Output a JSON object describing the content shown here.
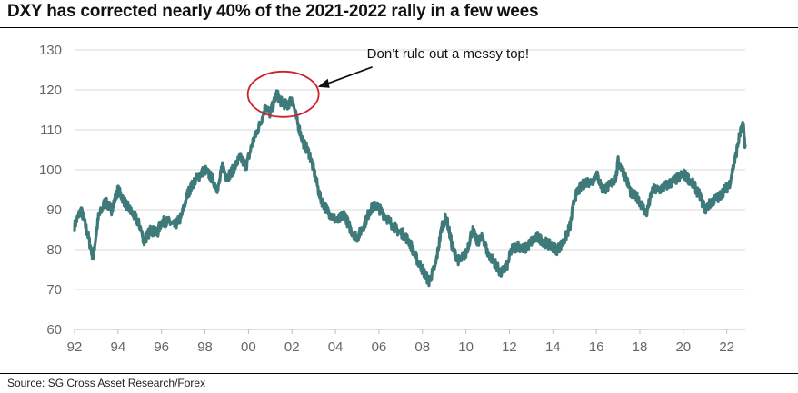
{
  "title": "DXY has corrected nearly 40% of the 2021-2022 rally in a few wees",
  "source": "Source: SG Cross Asset Research/Forex",
  "colors": {
    "line": "#3f7a7a",
    "circle": "#d0202a",
    "grid": "#d9d9d9",
    "axis": "#bfbfbf"
  },
  "chart_data": {
    "type": "line",
    "title": "DXY has corrected nearly 40% of the 2021-2022 rally in a few wees",
    "xlabel": "",
    "ylabel": "",
    "xlim": [
      1992,
      2022.85
    ],
    "ylim": [
      60,
      130
    ],
    "grid": "horizontal",
    "legend": "none",
    "x_tick_values": [
      1992,
      1994,
      1996,
      1998,
      2000,
      2002,
      2004,
      2006,
      2008,
      2010,
      2012,
      2014,
      2016,
      2018,
      2020,
      2022
    ],
    "x_tick_labels": [
      "92",
      "94",
      "96",
      "98",
      "00",
      "02",
      "04",
      "06",
      "08",
      "10",
      "12",
      "14",
      "16",
      "18",
      "20",
      "22"
    ],
    "y_tick_values": [
      60,
      70,
      80,
      90,
      100,
      110,
      120,
      130
    ],
    "y_tick_labels": [
      "60",
      "70",
      "80",
      "90",
      "100",
      "110",
      "120",
      "130"
    ],
    "series": [
      {
        "name": "DXY",
        "x": [
          1992.0,
          1992.3,
          1992.6,
          1992.85,
          1993.1,
          1993.4,
          1993.7,
          1994.0,
          1994.4,
          1994.8,
          1995.0,
          1995.2,
          1995.5,
          1995.8,
          1996.0,
          1996.3,
          1996.6,
          1996.9,
          1997.2,
          1997.5,
          1997.8,
          1998.0,
          1998.3,
          1998.6,
          1998.8,
          1999.0,
          1999.3,
          1999.6,
          1999.9,
          2000.2,
          2000.5,
          2000.8,
          2001.0,
          2001.3,
          2001.5,
          2001.8,
          2002.0,
          2002.2,
          2002.5,
          2002.8,
          2003.0,
          2003.3,
          2003.6,
          2003.9,
          2004.1,
          2004.4,
          2004.7,
          2005.0,
          2005.3,
          2005.6,
          2005.9,
          2006.2,
          2006.5,
          2006.8,
          2007.1,
          2007.4,
          2007.7,
          2008.0,
          2008.3,
          2008.6,
          2008.9,
          2009.1,
          2009.4,
          2009.7,
          2010.0,
          2010.3,
          2010.5,
          2010.8,
          2011.0,
          2011.3,
          2011.6,
          2011.9,
          2012.1,
          2012.4,
          2012.7,
          2013.0,
          2013.3,
          2013.6,
          2013.9,
          2014.2,
          2014.5,
          2014.8,
          2015.0,
          2015.2,
          2015.5,
          2015.8,
          2016.0,
          2016.3,
          2016.6,
          2016.9,
          2017.0,
          2017.3,
          2017.6,
          2017.9,
          2018.1,
          2018.3,
          2018.6,
          2018.9,
          2019.2,
          2019.5,
          2019.8,
          2020.0,
          2020.2,
          2020.5,
          2020.8,
          2021.0,
          2021.3,
          2021.6,
          2021.9,
          2022.1,
          2022.4,
          2022.6,
          2022.75,
          2022.85
        ],
        "values": [
          86,
          90,
          84,
          78,
          88,
          92,
          90,
          95,
          91,
          88,
          86,
          82,
          85,
          84,
          87,
          87,
          86,
          88,
          94,
          97,
          99,
          100,
          98,
          95,
          101,
          98,
          100,
          103,
          101,
          107,
          111,
          116,
          114,
          119,
          117,
          116,
          118,
          113,
          107,
          104,
          100,
          93,
          90,
          88,
          87,
          89,
          85,
          83,
          86,
          90,
          91,
          89,
          87,
          85,
          84,
          82,
          78,
          75,
          72,
          76,
          86,
          88,
          80,
          77,
          79,
          85,
          82,
          83,
          79,
          77,
          74,
          76,
          80,
          81,
          80,
          82,
          83,
          82,
          81,
          80,
          82,
          86,
          93,
          95,
          97,
          97,
          99,
          95,
          96,
          98,
          102,
          99,
          94,
          93,
          91,
          89,
          95,
          95,
          96,
          97,
          98,
          99,
          98,
          96,
          93,
          90,
          92,
          93,
          95,
          96,
          103,
          109,
          111,
          106
        ]
      }
    ],
    "annotations": [
      {
        "text": "Don’t rule out a messy top!",
        "target_x": 2001.6,
        "target_y": 118,
        "style": "red ellipse with arrow"
      }
    ]
  }
}
